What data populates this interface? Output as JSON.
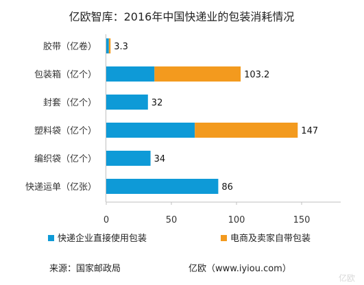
{
  "chart_data": {
    "type": "bar",
    "stacked": true,
    "orientation": "horizontal",
    "title": "亿欧智库：2016年中国快递业的包装消耗情况",
    "categories": [
      "胶带（亿卷）",
      "包装箱（亿个）",
      "封套（亿个）",
      "塑料袋（亿个）",
      "编织袋（亿个）",
      "快递运单（亿张）"
    ],
    "series": [
      {
        "name": "快递企业直接使用包装",
        "color": "#0e9ad7",
        "values": [
          2,
          37,
          32,
          68,
          34,
          86
        ]
      },
      {
        "name": "电商及卖家自带包装",
        "color": "#f39a1e",
        "values": [
          1.3,
          66.2,
          0,
          79,
          0,
          0
        ]
      }
    ],
    "totals": [
      "3.3",
      "103.2",
      "32",
      "147",
      "34",
      "86"
    ],
    "x_ticks": [
      "0",
      "50",
      "100",
      "150"
    ],
    "xlim": [
      0,
      180
    ],
    "grid": false,
    "legend_position": "bottom"
  },
  "footer": {
    "source": "来源：国家邮政局",
    "credit": "亿欧（www.iyiou.com）"
  },
  "watermark": "亿欧"
}
